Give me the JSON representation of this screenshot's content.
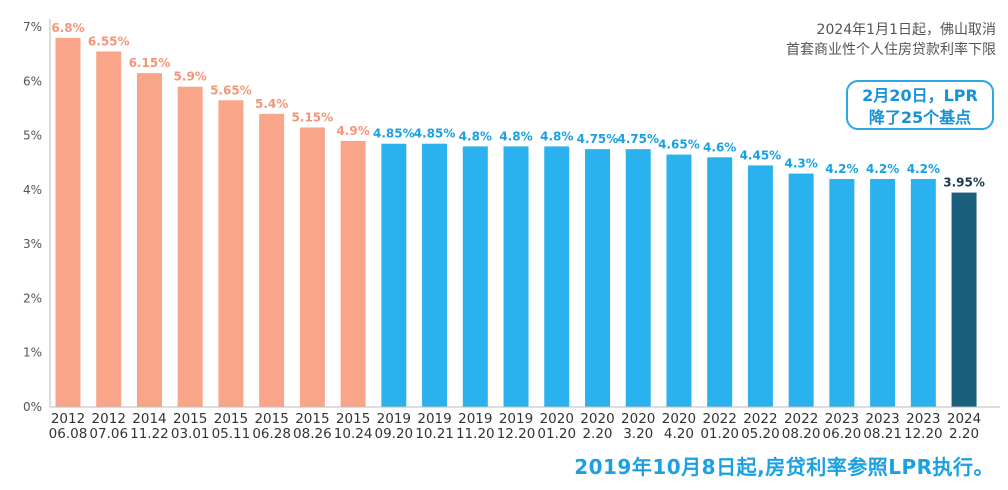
{
  "chart_data": {
    "type": "bar",
    "categories": [
      {
        "year": "2012",
        "date": "06.08"
      },
      {
        "year": "2012",
        "date": "07.06"
      },
      {
        "year": "2014",
        "date": "11.22"
      },
      {
        "year": "2015",
        "date": "03.01"
      },
      {
        "year": "2015",
        "date": "05.11"
      },
      {
        "year": "2015",
        "date": "06.28"
      },
      {
        "year": "2015",
        "date": "08.26"
      },
      {
        "year": "2015",
        "date": "10.24"
      },
      {
        "year": "2019",
        "date": "09.20"
      },
      {
        "year": "2019",
        "date": "10.21"
      },
      {
        "year": "2019",
        "date": "11.20"
      },
      {
        "year": "2019",
        "date": "12.20"
      },
      {
        "year": "2020",
        "date": "01.20"
      },
      {
        "year": "2020",
        "date": "2.20"
      },
      {
        "year": "2020",
        "date": "3.20"
      },
      {
        "year": "2020",
        "date": "4.20"
      },
      {
        "year": "2022",
        "date": "01.20"
      },
      {
        "year": "2022",
        "date": "05.20"
      },
      {
        "year": "2022",
        "date": "08.20"
      },
      {
        "year": "2023",
        "date": "06.20"
      },
      {
        "year": "2023",
        "date": "08.21"
      },
      {
        "year": "2023",
        "date": "12.20"
      },
      {
        "year": "2024",
        "date": "2.20"
      }
    ],
    "values": [
      6.8,
      6.55,
      6.15,
      5.9,
      5.65,
      5.4,
      5.15,
      4.9,
      4.85,
      4.85,
      4.8,
      4.8,
      4.8,
      4.75,
      4.75,
      4.65,
      4.6,
      4.45,
      4.3,
      4.2,
      4.2,
      4.2,
      3.95
    ],
    "data_labels": [
      "6.8%",
      "6.55%",
      "6.15%",
      "5.9%",
      "5.65%",
      "5.4%",
      "5.15%",
      "4.9%",
      "4.85%",
      "4.85%",
      "4.8%",
      "4.8%",
      "4.8%",
      "4.75%",
      "4.75%",
      "4.65%",
      "4.6%",
      "4.45%",
      "4.3%",
      "4.2%",
      "4.2%",
      "4.2%",
      "3.95%"
    ],
    "groups": [
      "base",
      "base",
      "base",
      "base",
      "base",
      "base",
      "base",
      "base",
      "lpr",
      "lpr",
      "lpr",
      "lpr",
      "lpr",
      "lpr",
      "lpr",
      "lpr",
      "lpr",
      "lpr",
      "lpr",
      "lpr",
      "lpr",
      "lpr",
      "latest"
    ],
    "colors": {
      "base": "#f9a58a",
      "lpr": "#29b2ee",
      "latest": "#1b5f7f"
    },
    "label_colors": {
      "base": "#f59577",
      "lpr": "#1aa0e3",
      "latest": "#1b3a4b"
    },
    "y_ticks": [
      "0%",
      "1%",
      "2%",
      "3%",
      "4%",
      "5%",
      "6%",
      "7%"
    ],
    "ylim": [
      0,
      7
    ],
    "grid": false
  },
  "annotations": {
    "note_line1": "2024年1月1日起，佛山取消",
    "note_line2": "首套商业性个人住房贷款利率下限",
    "callout_line1": "2月20日，LPR",
    "callout_line2": "降了25个基点",
    "footer": "2019年10月8日起,房贷利率参照LPR执行。"
  }
}
